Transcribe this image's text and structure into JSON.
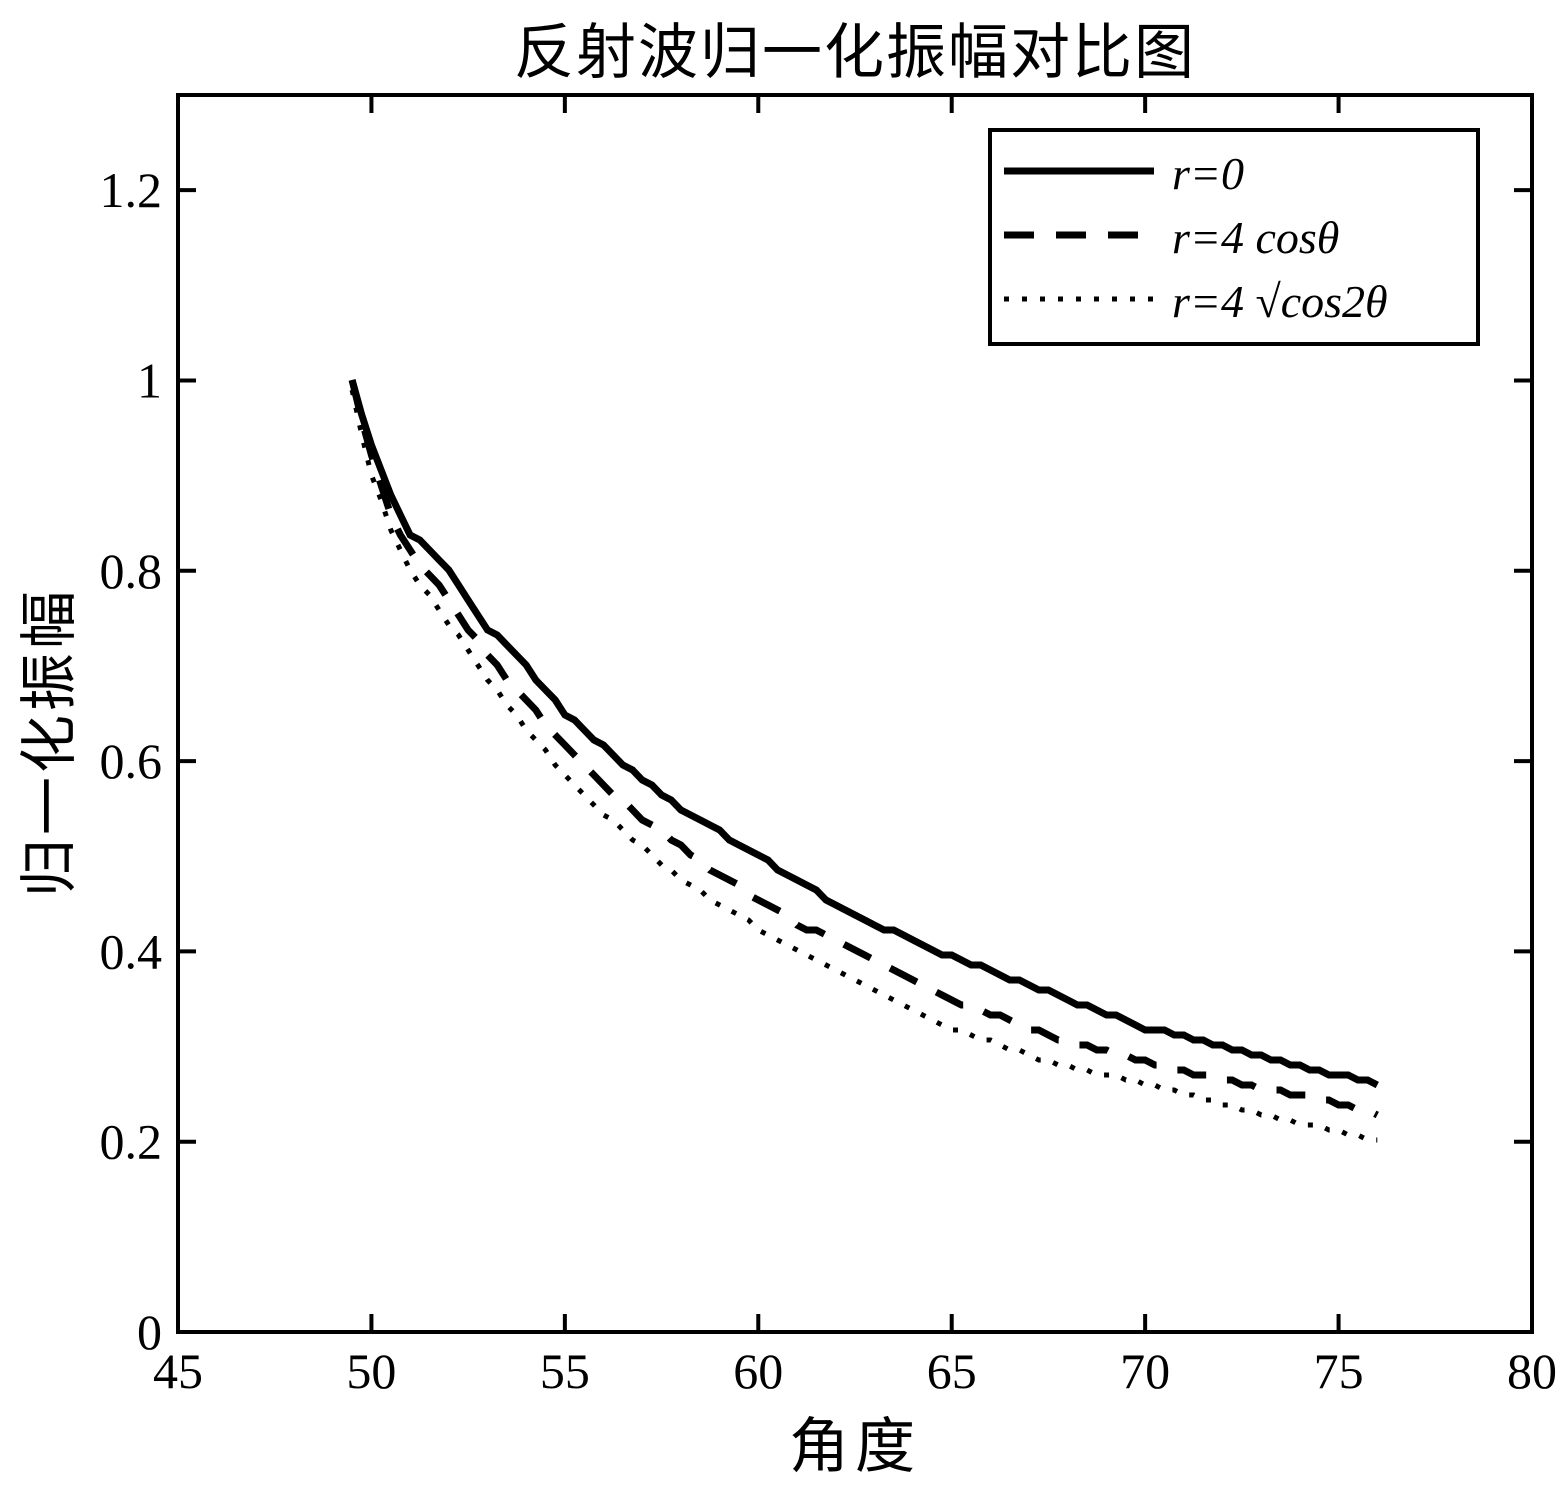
{
  "chart_data": {
    "type": "line",
    "title": "反射波归一化振幅对比图",
    "xlabel": "角度",
    "ylabel": "归一化振幅",
    "xlim": [
      45,
      80
    ],
    "ylim": [
      0,
      1.3
    ],
    "grid": false,
    "legend_position": "top-right",
    "background_color": "#ffffff",
    "line_color": "#000000",
    "x_ticks": [
      45,
      50,
      55,
      60,
      65,
      70,
      75,
      80
    ],
    "x_tick_labels": [
      "45",
      "50",
      "55",
      "60",
      "65",
      "70",
      "75",
      "80"
    ],
    "y_ticks": [
      0,
      0.2,
      0.4,
      0.6,
      0.8,
      1,
      1.2
    ],
    "y_tick_labels": [
      "0",
      "0.2",
      "0.4",
      "0.6",
      "0.8",
      "1",
      "1.2"
    ],
    "x": [
      49.5,
      50,
      50.5,
      51,
      52,
      53,
      54,
      55,
      56,
      57,
      58,
      59,
      60,
      61,
      62,
      63,
      64,
      65,
      66,
      67,
      68,
      69,
      70,
      71,
      72,
      73,
      74,
      75,
      76
    ],
    "series": [
      {
        "name": "r=0",
        "style": "solid",
        "values": [
          1.0,
          0.93,
          0.88,
          0.84,
          0.8,
          0.74,
          0.7,
          0.65,
          0.615,
          0.58,
          0.55,
          0.525,
          0.5,
          0.475,
          0.45,
          0.43,
          0.41,
          0.395,
          0.38,
          0.365,
          0.35,
          0.335,
          0.32,
          0.31,
          0.3,
          0.29,
          0.28,
          0.27,
          0.26
        ]
      },
      {
        "name": "r=4 cosθ",
        "style": "dashed",
        "values": [
          1.0,
          0.92,
          0.86,
          0.82,
          0.77,
          0.71,
          0.665,
          0.615,
          0.575,
          0.54,
          0.51,
          0.48,
          0.455,
          0.43,
          0.41,
          0.39,
          0.37,
          0.35,
          0.335,
          0.32,
          0.305,
          0.295,
          0.285,
          0.275,
          0.265,
          0.255,
          0.25,
          0.24,
          0.23
        ]
      },
      {
        "name": "r=4 √cos2θ",
        "style": "dotted",
        "values": [
          0.99,
          0.9,
          0.845,
          0.8,
          0.745,
          0.685,
          0.635,
          0.585,
          0.545,
          0.51,
          0.475,
          0.45,
          0.425,
          0.4,
          0.38,
          0.36,
          0.34,
          0.32,
          0.305,
          0.29,
          0.28,
          0.27,
          0.26,
          0.25,
          0.24,
          0.23,
          0.22,
          0.21,
          0.2
        ]
      }
    ]
  }
}
